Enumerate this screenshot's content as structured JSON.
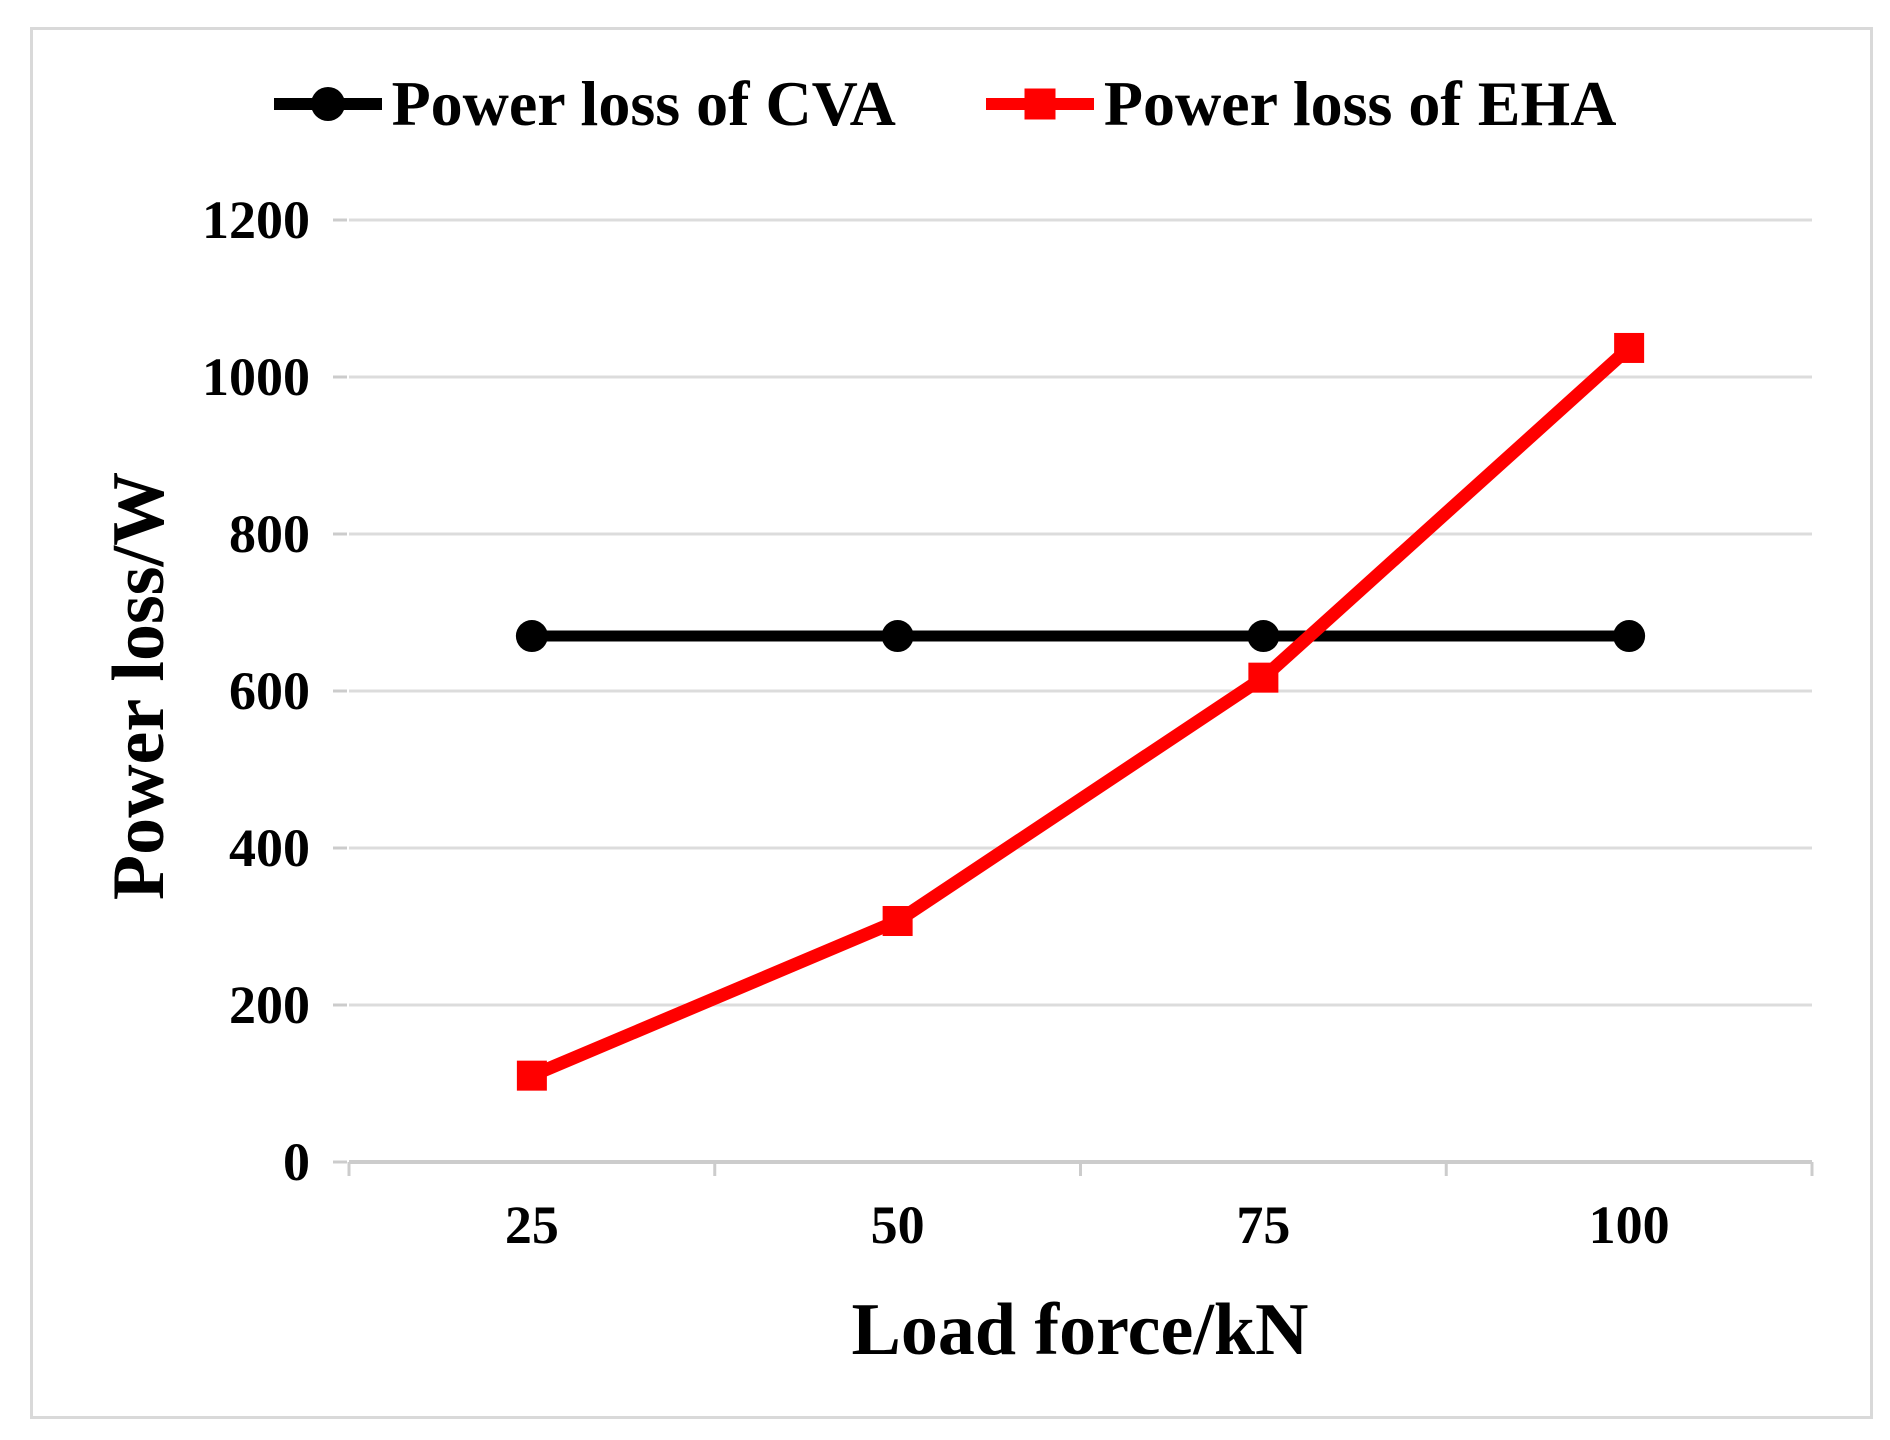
{
  "legend": {
    "items": [
      {
        "label": "Power loss of CVA",
        "color": "#000000",
        "marker": "circle"
      },
      {
        "label": "Power loss of EHA",
        "color": "#ff0000",
        "marker": "square"
      }
    ]
  },
  "chart_data": {
    "type": "line",
    "title": "",
    "xlabel": "Load force/kN",
    "ylabel": "Power loss/W",
    "x": [
      25,
      50,
      75,
      100
    ],
    "xticks": [
      "25",
      "50",
      "75",
      "100"
    ],
    "yticks": [
      0,
      200,
      400,
      600,
      800,
      1000,
      1200
    ],
    "ylim": [
      0,
      1200
    ],
    "grid": "horizontal",
    "legend_position": "top",
    "series": [
      {
        "name": "Power loss of CVA",
        "color": "#000000",
        "marker": "circle",
        "values": [
          670,
          670,
          670,
          670
        ]
      },
      {
        "name": "Power loss of EHA",
        "color": "#ff0000",
        "marker": "square",
        "values": [
          110,
          307,
          617,
          1037
        ]
      }
    ]
  },
  "colors": {
    "cva": "#000000",
    "eha": "#ff0000",
    "grid": "#dcdcdc",
    "axis": "#cccccc",
    "frame": "#d9d9d9"
  }
}
